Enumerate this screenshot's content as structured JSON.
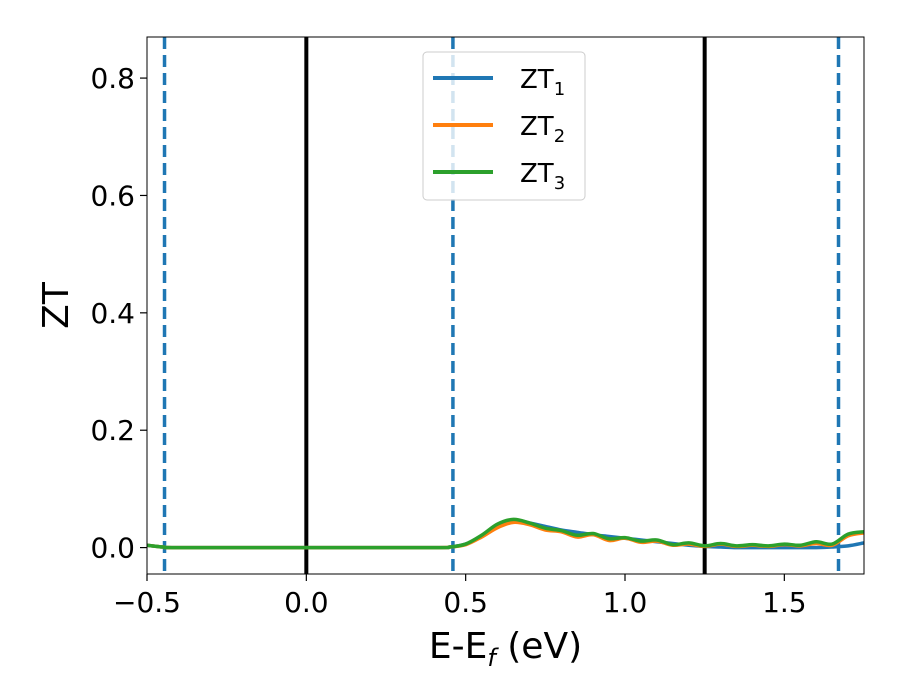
{
  "chart_data": {
    "type": "line",
    "xlabel": "E-E",
    "xlabel_sub": "f",
    "xlabel_unit": " (eV)",
    "ylabel": "ZT",
    "xlim": [
      -0.5,
      1.75
    ],
    "ylim": [
      -0.045,
      0.87
    ],
    "xticks": [
      -0.5,
      0.0,
      0.5,
      1.0,
      1.5
    ],
    "xtick_labels": [
      "−0.5",
      "0.0",
      "0.5",
      "1.0",
      "1.5"
    ],
    "yticks": [
      0.0,
      0.2,
      0.4,
      0.6,
      0.8
    ],
    "ytick_labels": [
      "0.0",
      "0.2",
      "0.4",
      "0.6",
      "0.8"
    ],
    "grid": false,
    "legend_position": "top-center",
    "vertical_lines": [
      {
        "x": -0.445,
        "style": "dashed",
        "color": "#1f77b4"
      },
      {
        "x": 0.0,
        "style": "solid",
        "color": "#000000"
      },
      {
        "x": 0.46,
        "style": "dashed",
        "color": "#1f77b4"
      },
      {
        "x": 1.25,
        "style": "solid",
        "color": "#000000"
      },
      {
        "x": 1.67,
        "style": "dashed",
        "color": "#1f77b4"
      }
    ],
    "series": [
      {
        "name": "ZT",
        "name_sub": "1",
        "color": "#1f77b4",
        "x": [
          -0.5,
          -0.45,
          -0.4,
          0.0,
          0.4,
          0.45,
          0.5,
          0.55,
          0.6,
          0.65,
          0.7,
          0.75,
          0.8,
          0.85,
          0.9,
          0.95,
          1.0,
          1.05,
          1.1,
          1.15,
          1.2,
          1.25,
          1.3,
          1.35,
          1.4,
          1.45,
          1.5,
          1.55,
          1.6,
          1.65,
          1.7,
          1.75
        ],
        "y": [
          0.004,
          0.001,
          0.0,
          0.0,
          0.0,
          0.001,
          0.006,
          0.02,
          0.038,
          0.047,
          0.042,
          0.036,
          0.03,
          0.026,
          0.022,
          0.019,
          0.016,
          0.013,
          0.01,
          0.007,
          0.004,
          0.002,
          0.001,
          0.0,
          0.0,
          0.0,
          0.0,
          0.0,
          0.0,
          0.001,
          0.003,
          0.008
        ]
      },
      {
        "name": "ZT",
        "name_sub": "2",
        "color": "#ff7f0e",
        "x": [
          -0.5,
          -0.45,
          -0.4,
          0.0,
          0.4,
          0.45,
          0.5,
          0.55,
          0.6,
          0.65,
          0.7,
          0.75,
          0.8,
          0.85,
          0.9,
          0.95,
          1.0,
          1.05,
          1.1,
          1.15,
          1.2,
          1.25,
          1.3,
          1.35,
          1.4,
          1.45,
          1.5,
          1.55,
          1.6,
          1.65,
          1.7,
          1.75
        ],
        "y": [
          0.004,
          0.001,
          0.0,
          0.0,
          0.0,
          0.001,
          0.005,
          0.018,
          0.034,
          0.043,
          0.039,
          0.03,
          0.027,
          0.018,
          0.022,
          0.012,
          0.016,
          0.009,
          0.011,
          0.004,
          0.006,
          0.002,
          0.006,
          0.002,
          0.004,
          0.002,
          0.005,
          0.003,
          0.007,
          0.004,
          0.02,
          0.025
        ]
      },
      {
        "name": "ZT",
        "name_sub": "3",
        "color": "#2ca02c",
        "x": [
          -0.5,
          -0.45,
          -0.4,
          0.0,
          0.4,
          0.45,
          0.5,
          0.55,
          0.6,
          0.65,
          0.7,
          0.75,
          0.8,
          0.85,
          0.9,
          0.95,
          1.0,
          1.05,
          1.1,
          1.15,
          1.2,
          1.25,
          1.3,
          1.35,
          1.4,
          1.45,
          1.5,
          1.55,
          1.6,
          1.65,
          1.7,
          1.75
        ],
        "y": [
          0.004,
          0.001,
          0.0,
          0.0,
          0.0,
          0.001,
          0.006,
          0.021,
          0.04,
          0.048,
          0.042,
          0.033,
          0.029,
          0.021,
          0.024,
          0.015,
          0.017,
          0.011,
          0.013,
          0.005,
          0.008,
          0.003,
          0.007,
          0.003,
          0.005,
          0.003,
          0.006,
          0.004,
          0.01,
          0.006,
          0.023,
          0.027
        ]
      }
    ]
  }
}
